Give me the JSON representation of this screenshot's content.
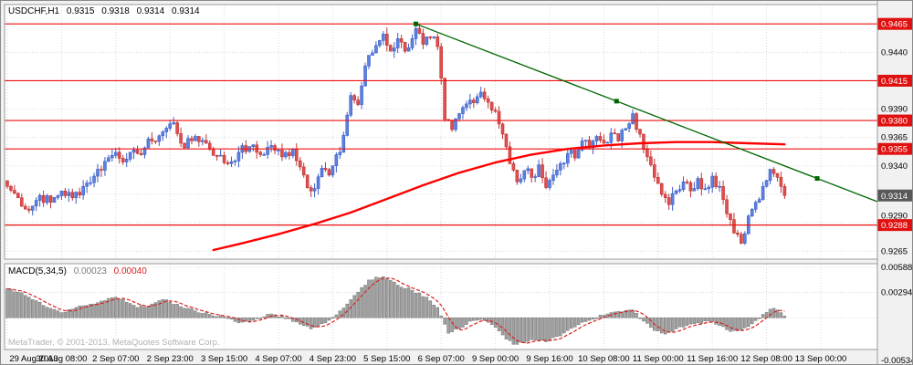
{
  "header": {
    "symbol_period": "USDCHF,H1",
    "open": "0.9315",
    "high": "0.9318",
    "low": "0.9314",
    "close": "0.9314"
  },
  "macd_panel": {
    "label": "MACD(5,34,5)",
    "main_value": "0.00023",
    "signal_value": "0.00040"
  },
  "watermark": "MetaTrader, © 2001-2013, MetaQuotes Software Corp.",
  "colors": {
    "bg": "#f1f1f1",
    "plot_bg": "#ffffff",
    "border": "#9a9a9a",
    "grid": "#d9d9d9",
    "up": "#3b5ec9",
    "up_fill": "#5c82dd",
    "down": "#c43333",
    "down_fill": "#de4f4f",
    "hline": "#ee1111",
    "tag_red": "#e01010",
    "tag_dark": "#585858",
    "trend": "#006600",
    "ma": "#ff0000",
    "macd_bar_fill": "#a0a0a0",
    "macd_bar_stroke": "#737373",
    "signal": "#d92020",
    "axis_text": "#000000"
  },
  "chart_data": {
    "type": "candlestick",
    "symbol": "USDCHF",
    "timeframe": "H1",
    "title": "USDCHF,H1 0.9315 0.9318 0.9314 0.9314",
    "current_bar": {
      "open": 0.9315,
      "high": 0.9318,
      "low": 0.9314,
      "close": 0.9314
    },
    "price_range": [
      0.9258,
      0.9482
    ],
    "grid_step": 0.0025,
    "price_grid_labels": [
      "0.9440",
      "0.9390",
      "0.9365",
      "0.9340",
      "0.9290",
      "0.9265"
    ],
    "horizontal_lines": [
      "0.9465",
      "0.9415",
      "0.9380",
      "0.9355",
      "0.9288"
    ],
    "current_price": "0.9314",
    "time_labels": [
      "29 Aug 2013",
      "30 Aug 08:00",
      "2 Sep 07:00",
      "2 Sep 23:00",
      "3 Sep 15:00",
      "4 Sep 07:00",
      "4 Sep 23:00",
      "5 Sep 15:00",
      "6 Sep 07:00",
      "9 Sep 00:00",
      "9 Sep 16:00",
      "10 Sep 08:00",
      "11 Sep 00:00",
      "11 Sep 16:00",
      "12 Sep 08:00",
      "13 Sep 00:00"
    ],
    "bars_count": 216,
    "bars_per_label": 15,
    "close_keyframes": [
      [
        0,
        0.9322
      ],
      [
        3,
        0.9312
      ],
      [
        6,
        0.9301
      ],
      [
        9,
        0.9314
      ],
      [
        12,
        0.9308
      ],
      [
        15,
        0.9318
      ],
      [
        18,
        0.9312
      ],
      [
        21,
        0.9322
      ],
      [
        24,
        0.9331
      ],
      [
        27,
        0.9344
      ],
      [
        30,
        0.9352
      ],
      [
        33,
        0.9346
      ],
      [
        36,
        0.9351
      ],
      [
        40,
        0.9362
      ],
      [
        43,
        0.937
      ],
      [
        46,
        0.9378
      ],
      [
        49,
        0.9356
      ],
      [
        52,
        0.9366
      ],
      [
        55,
        0.936
      ],
      [
        58,
        0.9349
      ],
      [
        61,
        0.9342
      ],
      [
        64,
        0.9352
      ],
      [
        67,
        0.9357
      ],
      [
        70,
        0.935
      ],
      [
        73,
        0.9358
      ],
      [
        76,
        0.9348
      ],
      [
        79,
        0.9355
      ],
      [
        82,
        0.9332
      ],
      [
        84,
        0.9318
      ],
      [
        87,
        0.9338
      ],
      [
        89,
        0.9332
      ],
      [
        92,
        0.9352
      ],
      [
        95,
        0.9402
      ],
      [
        97,
        0.9394
      ],
      [
        99,
        0.9428
      ],
      [
        102,
        0.9446
      ],
      [
        104,
        0.9456
      ],
      [
        106,
        0.9441
      ],
      [
        108,
        0.9452
      ],
      [
        110,
        0.9441
      ],
      [
        113,
        0.9461
      ],
      [
        115,
        0.9447
      ],
      [
        117,
        0.9453
      ],
      [
        119,
        0.9445
      ],
      [
        121,
        0.9381
      ],
      [
        123,
        0.9372
      ],
      [
        125,
        0.9386
      ],
      [
        128,
        0.9398
      ],
      [
        131,
        0.9405
      ],
      [
        133,
        0.9396
      ],
      [
        135,
        0.9388
      ],
      [
        137,
        0.9368
      ],
      [
        139,
        0.9342
      ],
      [
        141,
        0.9326
      ],
      [
        143,
        0.9336
      ],
      [
        145,
        0.933
      ],
      [
        147,
        0.9341
      ],
      [
        149,
        0.9321
      ],
      [
        151,
        0.9332
      ],
      [
        153,
        0.9342
      ],
      [
        155,
        0.9351
      ],
      [
        157,
        0.9347
      ],
      [
        159,
        0.9362
      ],
      [
        161,
        0.9356
      ],
      [
        163,
        0.9366
      ],
      [
        165,
        0.936
      ],
      [
        167,
        0.9369
      ],
      [
        169,
        0.9362
      ],
      [
        171,
        0.9373
      ],
      [
        173,
        0.9386
      ],
      [
        175,
        0.9368
      ],
      [
        177,
        0.9348
      ],
      [
        179,
        0.933
      ],
      [
        181,
        0.9315
      ],
      [
        183,
        0.9306
      ],
      [
        185,
        0.9318
      ],
      [
        187,
        0.9326
      ],
      [
        189,
        0.9318
      ],
      [
        191,
        0.9329
      ],
      [
        193,
        0.932
      ],
      [
        195,
        0.9331
      ],
      [
        197,
        0.9322
      ],
      [
        199,
        0.9298
      ],
      [
        201,
        0.9281
      ],
      [
        203,
        0.9272
      ],
      [
        205,
        0.9296
      ],
      [
        207,
        0.9308
      ],
      [
        209,
        0.9322
      ],
      [
        211,
        0.9337
      ],
      [
        213,
        0.933
      ],
      [
        214,
        0.9322
      ],
      [
        215,
        0.9314
      ]
    ],
    "trendline": {
      "bar1": 113,
      "price1": 0.9465,
      "bar2": 224,
      "price2": 0.9329,
      "ray_to_edge": true
    },
    "ma_points": [
      [
        57,
        0.9266
      ],
      [
        65,
        0.9272
      ],
      [
        75,
        0.928
      ],
      [
        85,
        0.9289
      ],
      [
        95,
        0.9299
      ],
      [
        105,
        0.9311
      ],
      [
        115,
        0.9323
      ],
      [
        125,
        0.9334
      ],
      [
        135,
        0.9343
      ],
      [
        145,
        0.935
      ],
      [
        155,
        0.9355
      ],
      [
        165,
        0.9358
      ],
      [
        175,
        0.936
      ],
      [
        185,
        0.9361
      ],
      [
        195,
        0.9361
      ],
      [
        205,
        0.936
      ],
      [
        215,
        0.9359
      ]
    ],
    "macd": {
      "name": "MACD(5,34,5)",
      "range": [
        -0.0037,
        0.0063
      ],
      "axis_labels": [
        [
          "0.00588",
          0.00588
        ],
        [
          "0.00294",
          0.00294
        ],
        [
          "-0.00534",
          -0.00534
        ]
      ],
      "histogram_keyframes": [
        [
          0,
          0.0034
        ],
        [
          3,
          0.003
        ],
        [
          6,
          0.0024
        ],
        [
          9,
          0.0018
        ],
        [
          12,
          0.0011
        ],
        [
          15,
          0.0006
        ],
        [
          18,
          0.001
        ],
        [
          21,
          0.0014
        ],
        [
          24,
          0.0016
        ],
        [
          27,
          0.002
        ],
        [
          30,
          0.0024
        ],
        [
          33,
          0.0018
        ],
        [
          36,
          0.0012
        ],
        [
          40,
          0.0016
        ],
        [
          44,
          0.0021
        ],
        [
          48,
          0.0013
        ],
        [
          52,
          0.0008
        ],
        [
          56,
          0.0004
        ],
        [
          60,
          0.0001
        ],
        [
          64,
          -0.0006
        ],
        [
          68,
          -0.0003
        ],
        [
          72,
          0.0004
        ],
        [
          76,
          0.0002
        ],
        [
          80,
          -0.0005
        ],
        [
          84,
          -0.0013
        ],
        [
          88,
          -0.0006
        ],
        [
          92,
          0.0008
        ],
        [
          96,
          0.0026
        ],
        [
          100,
          0.0044
        ],
        [
          104,
          0.0048
        ],
        [
          108,
          0.0038
        ],
        [
          112,
          0.0032
        ],
        [
          116,
          0.0024
        ],
        [
          119,
          0.0012
        ],
        [
          122,
          -0.0018
        ],
        [
          125,
          -0.0013
        ],
        [
          128,
          -0.0004
        ],
        [
          131,
          -0.0002
        ],
        [
          134,
          -0.0008
        ],
        [
          137,
          -0.002
        ],
        [
          140,
          -0.0031
        ],
        [
          143,
          -0.0029
        ],
        [
          146,
          -0.0026
        ],
        [
          149,
          -0.0028
        ],
        [
          152,
          -0.0022
        ],
        [
          155,
          -0.0015
        ],
        [
          158,
          -0.0008
        ],
        [
          161,
          -0.0003
        ],
        [
          164,
          0.0003
        ],
        [
          167,
          0.0006
        ],
        [
          170,
          0.0007
        ],
        [
          173,
          0.0009
        ],
        [
          176,
          -0.0004
        ],
        [
          179,
          -0.0015
        ],
        [
          182,
          -0.0019
        ],
        [
          185,
          -0.0013
        ],
        [
          188,
          -0.0009
        ],
        [
          191,
          -0.0006
        ],
        [
          194,
          -0.0004
        ],
        [
          197,
          -0.0009
        ],
        [
          200,
          -0.0016
        ],
        [
          203,
          -0.0014
        ],
        [
          206,
          -0.0007
        ],
        [
          209,
          0.0004
        ],
        [
          212,
          0.0011
        ],
        [
          214,
          0.0006
        ],
        [
          215,
          0.0002
        ]
      ]
    }
  }
}
